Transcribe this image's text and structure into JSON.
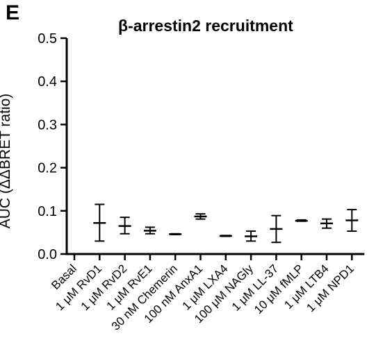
{
  "panel_label": "E",
  "chart_data": {
    "type": "scatter",
    "title": "β-arrestin2 recruitment",
    "ylabel": "AUC (ΔΔBRET ratio)",
    "xlabel": "",
    "ylim": [
      0,
      0.5
    ],
    "yticks": [
      "0.0",
      "0.1",
      "0.2",
      "0.3",
      "0.4",
      "0.5"
    ],
    "grid": false,
    "categories": [
      "Basal",
      "1 μM RvD1",
      "1 μM RvD2",
      "1 μM RvE1",
      "30 nM Chemerin",
      "100 nM AnxA1",
      "1 μM LXA4",
      "100 μM NAGly",
      "1 μM LL-37",
      "10 μM fMLP",
      "1 μM LTB4",
      "1 μM NPD1"
    ],
    "series": [
      {
        "mean": [
          0,
          0.072,
          0.065,
          0.054,
          0.046,
          0.087,
          0.042,
          0.041,
          0.058,
          0.077,
          0.071,
          0.078
        ],
        "upper": [
          0,
          0.115,
          0.085,
          0.062,
          0.047,
          0.093,
          0.043,
          0.053,
          0.089,
          0.079,
          0.081,
          0.103
        ],
        "lower": [
          0,
          0.03,
          0.047,
          0.047,
          0.045,
          0.081,
          0.041,
          0.03,
          0.027,
          0.076,
          0.06,
          0.053
        ]
      }
    ],
    "colors": {
      "marks": "#000000"
    }
  }
}
